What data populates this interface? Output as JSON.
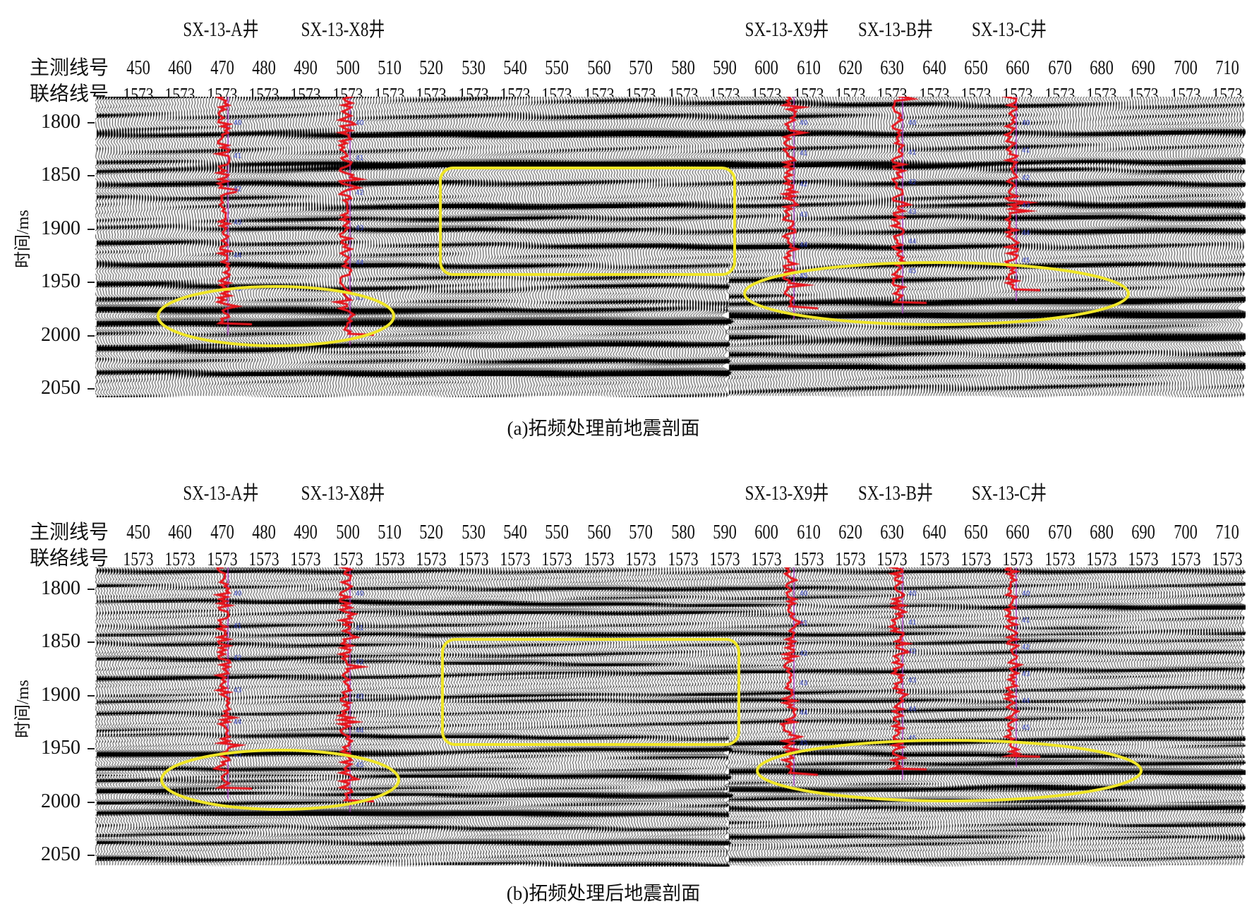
{
  "wells": [
    "SX-13-A井",
    "SX-13-X8井",
    "SX-13-X9井",
    "SX-13-B井",
    "SX-13-C井"
  ],
  "inline_label": "主测线号",
  "crossline_label": "联络线号",
  "inlines": [
    "450",
    "460",
    "470",
    "480",
    "490",
    "500",
    "510",
    "520",
    "530",
    "540",
    "550",
    "560",
    "570",
    "580",
    "590",
    "600",
    "610",
    "620",
    "630",
    "640",
    "650",
    "660",
    "670",
    "680",
    "690",
    "700",
    "710"
  ],
  "crosslines": [
    "1573",
    "1573",
    "1573",
    "1573",
    "1573",
    "1573",
    "1573",
    "1573",
    "1573",
    "1573",
    "1573",
    "1573",
    "1573",
    "1573",
    "1573",
    "1573",
    "1573",
    "1573",
    "1573",
    "1573",
    "1573",
    "1573",
    "1573",
    "1573",
    "1573",
    "1573",
    "1573"
  ],
  "time_ticks": [
    "1800",
    "1850",
    "1900",
    "1950",
    "2000",
    "2050"
  ],
  "y_axis_label": "时间/ms",
  "panels": [
    {
      "caption": "(a)拓频处理前地震剖面"
    },
    {
      "caption": "(b)拓频处理后地震剖面"
    }
  ],
  "colors": {
    "well_log": "#e8141c",
    "highlight": "#f0e626",
    "wavelet": "#000000"
  }
}
